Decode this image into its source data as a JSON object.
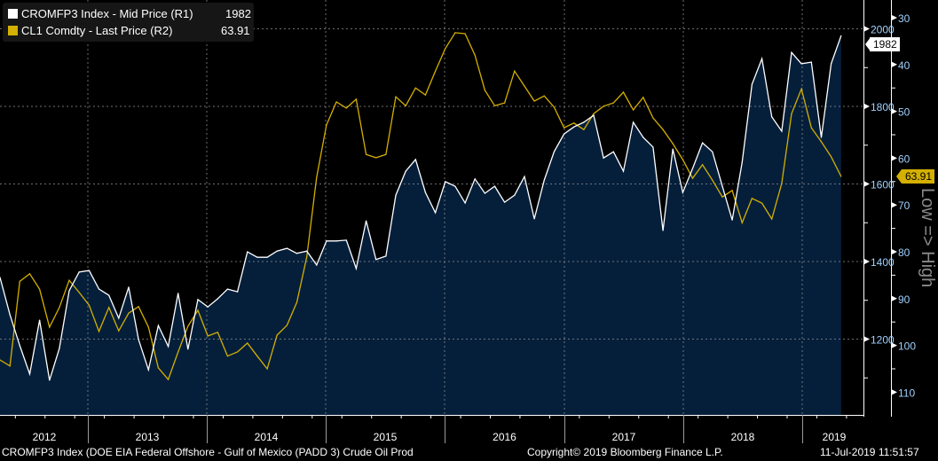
{
  "chart_data": {
    "type": "line",
    "title": "",
    "x_start": "2012-04",
    "x_frequency": "monthly",
    "x_tick_labels": [
      "2012",
      "2013",
      "2014",
      "2015",
      "2016",
      "2017",
      "2018",
      "2019"
    ],
    "grid": true,
    "legend_position": "top-left",
    "series": [
      {
        "name": "CROMFP3 Index - Mid Price (R1)",
        "last_value": "1982",
        "axis": "R1",
        "style": "area",
        "color": "#ffffff",
        "fill": "#051f3b",
        "values": [
          1359,
          1263,
          1183,
          1110,
          1249,
          1094,
          1176,
          1325,
          1373,
          1377,
          1329,
          1313,
          1254,
          1334,
          1199,
          1121,
          1235,
          1181,
          1318,
          1174,
          1302,
          1283,
          1304,
          1329,
          1322,
          1425,
          1411,
          1411,
          1427,
          1434,
          1421,
          1427,
          1391,
          1453,
          1453,
          1455,
          1382,
          1505,
          1405,
          1414,
          1571,
          1633,
          1663,
          1578,
          1526,
          1606,
          1594,
          1551,
          1613,
          1576,
          1594,
          1553,
          1571,
          1619,
          1510,
          1610,
          1683,
          1729,
          1747,
          1759,
          1777,
          1667,
          1683,
          1633,
          1759,
          1720,
          1695,
          1480,
          1690,
          1578,
          1640,
          1706,
          1683,
          1594,
          1507,
          1656,
          1857,
          1923,
          1773,
          1736,
          1939,
          1910,
          1914,
          1720,
          1910,
          1982
        ]
      },
      {
        "name": "CL1 Comdty - Last Price (R2)",
        "last_value": "63.91",
        "axis": "R2",
        "style": "line",
        "color": "#d4b000",
        "values": [
          103.1,
          104.4,
          86.3,
          84.7,
          88.0,
          96.1,
          91.9,
          86.1,
          88.7,
          91.4,
          97.0,
          91.9,
          96.9,
          93.1,
          91.7,
          96.1,
          104.8,
          107.3,
          101.4,
          95.9,
          92.5,
          98.0,
          97.2,
          102.3,
          101.4,
          99.5,
          102.3,
          105.0,
          97.8,
          95.7,
          90.8,
          81.1,
          64.1,
          52.9,
          48.0,
          49.3,
          47.4,
          59.2,
          59.9,
          59.2,
          46.9,
          48.8,
          45.0,
          46.5,
          41.4,
          36.6,
          33.2,
          33.4,
          38.0,
          45.5,
          48.8,
          48.2,
          41.4,
          44.6,
          47.8,
          46.7,
          49.1,
          53.5,
          52.5,
          53.9,
          50.5,
          48.9,
          48.2,
          45.9,
          49.7,
          47.0,
          51.4,
          53.9,
          56.9,
          60.3,
          64.3,
          61.4,
          64.7,
          68.3,
          66.9,
          73.8,
          68.6,
          69.6,
          73.0,
          65.4,
          50.5,
          45.2,
          53.5,
          56.5,
          59.7,
          63.91
        ]
      }
    ],
    "axes": {
      "r1": {
        "ticks": [
          "1200",
          "1400",
          "1600",
          "1800",
          "2000"
        ],
        "tick_values": [
          1200,
          1400,
          1600,
          1800,
          2000
        ]
      },
      "r2": {
        "ticks": [
          "30",
          "40",
          "50",
          "60",
          "70",
          "80",
          "90",
          "100",
          "110"
        ],
        "tick_values": [
          30,
          40,
          50,
          60,
          70,
          80,
          90,
          100,
          110
        ],
        "inverted": true,
        "label": "Low => High"
      }
    }
  },
  "footer": {
    "description": "CROMFP3 Index (DOE EIA Federal Offshore - Gulf of Mexico (PADD 3) Crude Oil Prod",
    "copyright": "Copyright© 2019 Bloomberg Finance L.P.",
    "timestamp": "11-Jul-2019 11:51:57"
  }
}
